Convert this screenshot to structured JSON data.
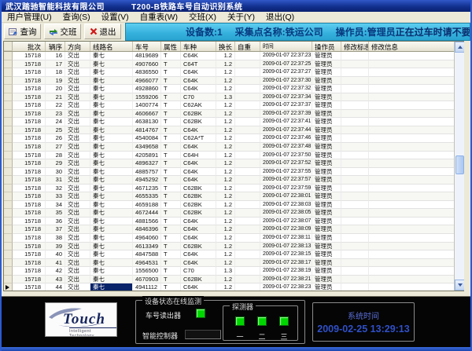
{
  "title_bar": {
    "company": "武汉踏驰智能科技有限公司",
    "app_title": "T200-B铁路车号自动识别系统"
  },
  "menu_bar": {
    "items": [
      "用户管理(U)",
      "查询(S)",
      "设置(V)",
      "自重表(W)",
      "交班(X)",
      "关于(Y)",
      "退出(Q)"
    ]
  },
  "toolbar": {
    "query_label": "查询",
    "shift_label": "交班",
    "exit_label": "退出",
    "status": {
      "device_count": "设备数:1",
      "collection_point": "采集点名称:铁运公司",
      "operator": "操作员:管理员",
      "warning": "正在过车时请不要操作电脑!"
    }
  },
  "grid": {
    "columns": [
      "批次",
      "辆序",
      "方向",
      "线路名",
      "车号",
      "属性",
      "车种",
      "换长",
      "自重",
      "时间",
      "操作员",
      "修改标志",
      "修改信息"
    ],
    "rows": [
      [
        "15718",
        "16",
        "交出",
        "秦七",
        "4819689",
        "T",
        "C64K",
        "1.2",
        "",
        "2009-01-07 22:37:23",
        "管理员",
        "",
        ""
      ],
      [
        "15718",
        "17",
        "交出",
        "秦七",
        "4907660",
        "T",
        "C64T",
        "1.2",
        "",
        "2009-01-07 22:37:25",
        "管理员",
        "",
        ""
      ],
      [
        "15718",
        "18",
        "交出",
        "秦七",
        "4836550",
        "T",
        "C64K",
        "1.2",
        "",
        "2009-01-07 22:37:27",
        "管理员",
        "",
        ""
      ],
      [
        "15718",
        "19",
        "交出",
        "秦七",
        "4966077",
        "T",
        "C64K",
        "1.2",
        "",
        "2009-01-07 22:37:30",
        "管理员",
        "",
        ""
      ],
      [
        "15718",
        "20",
        "交出",
        "秦七",
        "4928860",
        "T",
        "C64K",
        "1.2",
        "",
        "2009-01-07 22:37:32",
        "管理员",
        "",
        ""
      ],
      [
        "15718",
        "21",
        "交出",
        "秦七",
        "1559206",
        "T",
        "C70",
        "1.3",
        "",
        "2009-01-07 22:37:34",
        "管理员",
        "",
        ""
      ],
      [
        "15718",
        "22",
        "交出",
        "秦七",
        "1400774",
        "T",
        "C62AK",
        "1.2",
        "",
        "2009-01-07 22:37:37",
        "管理员",
        "",
        ""
      ],
      [
        "15718",
        "23",
        "交出",
        "秦七",
        "4606667",
        "T",
        "C62BK",
        "1.2",
        "",
        "2009-01-07 22:37:39",
        "管理员",
        "",
        ""
      ],
      [
        "15718",
        "24",
        "交出",
        "秦七",
        "4638130",
        "T",
        "C62BK",
        "1.2",
        "",
        "2009-01-07 22:37:41",
        "管理员",
        "",
        ""
      ],
      [
        "15718",
        "25",
        "交出",
        "秦七",
        "4814767",
        "T",
        "C64K",
        "1.2",
        "",
        "2009-01-07 22:37:44",
        "管理员",
        "",
        ""
      ],
      [
        "15718",
        "26",
        "交出",
        "秦七",
        "4540084",
        "T",
        "C62A*T",
        "1.2",
        "",
        "2009-01-07 22:37:46",
        "管理员",
        "",
        ""
      ],
      [
        "15718",
        "27",
        "交出",
        "秦七",
        "4349658",
        "T",
        "C64K",
        "1.2",
        "",
        "2009-01-07 22:37:48",
        "管理员",
        "",
        ""
      ],
      [
        "15718",
        "28",
        "交出",
        "秦七",
        "4205891",
        "T",
        "C64H",
        "1.2",
        "",
        "2009-01-07 22:37:50",
        "管理员",
        "",
        ""
      ],
      [
        "15718",
        "29",
        "交出",
        "秦七",
        "4896327",
        "T",
        "C64K",
        "1.2",
        "",
        "2009-01-07 22:37:52",
        "管理员",
        "",
        ""
      ],
      [
        "15718",
        "30",
        "交出",
        "秦七",
        "4885757",
        "T",
        "C64K",
        "1.2",
        "",
        "2009-01-07 22:37:55",
        "管理员",
        "",
        ""
      ],
      [
        "15718",
        "31",
        "交出",
        "秦七",
        "4945292",
        "T",
        "C64K",
        "1.2",
        "",
        "2009-01-07 22:37:57",
        "管理员",
        "",
        ""
      ],
      [
        "15718",
        "32",
        "交出",
        "秦七",
        "4671235",
        "T",
        "C62BK",
        "1.2",
        "",
        "2009-01-07 22:37:59",
        "管理员",
        "",
        ""
      ],
      [
        "15718",
        "33",
        "交出",
        "秦七",
        "4655335",
        "T",
        "C62BK",
        "1.2",
        "",
        "2009-01-07 22:38:01",
        "管理员",
        "",
        ""
      ],
      [
        "15718",
        "34",
        "交出",
        "秦七",
        "4659188",
        "T",
        "C62BK",
        "1.2",
        "",
        "2009-01-07 22:38:03",
        "管理员",
        "",
        ""
      ],
      [
        "15718",
        "35",
        "交出",
        "秦七",
        "4672444",
        "T",
        "C62BK",
        "1.2",
        "",
        "2009-01-07 22:38:05",
        "管理员",
        "",
        ""
      ],
      [
        "15718",
        "36",
        "交出",
        "秦七",
        "4881566",
        "T",
        "C64K",
        "1.2",
        "",
        "2009-01-07 22:38:07",
        "管理员",
        "",
        ""
      ],
      [
        "15718",
        "37",
        "交出",
        "秦七",
        "4846396",
        "T",
        "C64K",
        "1.2",
        "",
        "2009-01-07 22:38:09",
        "管理员",
        "",
        ""
      ],
      [
        "15718",
        "38",
        "交出",
        "秦七",
        "4964060",
        "T",
        "C64K",
        "1.2",
        "",
        "2009-01-07 22:38:11",
        "管理员",
        "",
        ""
      ],
      [
        "15718",
        "39",
        "交出",
        "秦七",
        "4613349",
        "T",
        "C62BK",
        "1.2",
        "",
        "2009-01-07 22:38:13",
        "管理员",
        "",
        ""
      ],
      [
        "15718",
        "40",
        "交出",
        "秦七",
        "4847588",
        "T",
        "C64K",
        "1.2",
        "",
        "2009-01-07 22:38:15",
        "管理员",
        "",
        ""
      ],
      [
        "15718",
        "41",
        "交出",
        "秦七",
        "4964531",
        "T",
        "C64K",
        "1.2",
        "",
        "2009-01-07 22:38:17",
        "管理员",
        "",
        ""
      ],
      [
        "15718",
        "42",
        "交出",
        "秦七",
        "1556500",
        "T",
        "C70",
        "1.3",
        "",
        "2009-01-07 22:38:19",
        "管理员",
        "",
        ""
      ],
      [
        "15718",
        "43",
        "交出",
        "秦七",
        "4670903",
        "T",
        "C62BK",
        "1.2",
        "",
        "2009-01-07 22:38:21",
        "管理员",
        "",
        ""
      ],
      [
        "15718",
        "44",
        "交出",
        "秦七",
        "4941112",
        "T",
        "C64K",
        "1.2",
        "",
        "2009-01-07 22:38:23",
        "管理员",
        "",
        ""
      ]
    ],
    "selected_row_index": 28,
    "selected_column_index": 3
  },
  "bottom_panel": {
    "logo": {
      "brand": "Touch",
      "tagline": "Intelligent Technology"
    },
    "monitor": {
      "title": "设备状态在线监测",
      "reader_label": "车号读出器",
      "controller_label": "智能控制器",
      "detectors": {
        "title": "探测器",
        "labels": [
          "一",
          "二",
          "三"
        ]
      }
    },
    "system_time": {
      "title": "系统时间",
      "value": "2009-02-25 13:29:13"
    }
  },
  "colors": {
    "led_green": "#00d600",
    "info_bar_cyan": "#34b0dd",
    "warning_text": "#0a2d6e",
    "selection_blue": "#0a246a",
    "system_time_blue": "#3050c8"
  }
}
